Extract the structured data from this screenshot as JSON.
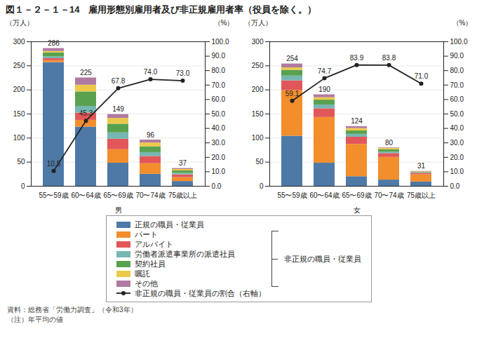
{
  "chart_data": [
    {
      "type": "bar",
      "title": "図１－２－１－14　雇用形態別雇用者及び非正規雇用者率（役員を除く。）",
      "stacked": true,
      "grid": true,
      "data_labels": true,
      "legend": "bottom",
      "x_label": "男",
      "y_label": "（万人）",
      "y2_label": "（%）",
      "categories": [
        "55〜59歳",
        "60〜64歳",
        "65〜69歳",
        "70〜74歳",
        "75歳以上"
      ],
      "ylim": [
        0,
        300
      ],
      "yticks": [
        0,
        50,
        100,
        150,
        200,
        250,
        300
      ],
      "y2lim": [
        0,
        100
      ],
      "y2ticks": [
        {
          "value": 0,
          "label": "0.0"
        },
        {
          "value": 10,
          "label": "10.0"
        },
        {
          "value": 20,
          "label": "20.0"
        },
        {
          "value": 30,
          "label": "30.0"
        },
        {
          "value": 40,
          "label": "40.0"
        },
        {
          "value": 50,
          "label": "50.0"
        },
        {
          "value": 60,
          "label": "60.0"
        },
        {
          "value": 70,
          "label": "70.0"
        },
        {
          "value": 80,
          "label": "80.0"
        },
        {
          "value": 90,
          "label": "90.0"
        },
        {
          "value": 100,
          "label": "100.0"
        }
      ],
      "totals": [
        286,
        225,
        149,
        96,
        37
      ],
      "series": [
        {
          "name": "正規の職員・従業員",
          "values": [
            257,
            123,
            48,
            25,
            10
          ]
        },
        {
          "name": "パート",
          "values": [
            4,
            14,
            28,
            22,
            8
          ]
        },
        {
          "name": "アルバイト",
          "values": [
            4,
            15,
            22,
            15,
            6
          ]
        },
        {
          "name": "労働者派遣事業所の派遣社員",
          "values": [
            4,
            14,
            13,
            8,
            3
          ]
        },
        {
          "name": "契約社員",
          "values": [
            8,
            30,
            18,
            12,
            5
          ]
        },
        {
          "name": "嘱託",
          "values": [
            3,
            14,
            12,
            8,
            3
          ]
        },
        {
          "name": "その他",
          "values": [
            6,
            15,
            8,
            6,
            2
          ]
        },
        {
          "name": "非正規の職員・従業員の割合（右軸）",
          "type": "line",
          "axis": "y2",
          "marker": "circle",
          "values": [
            10.5,
            45.3,
            67.8,
            74.0,
            73.0
          ],
          "value_labels": [
            "10.5",
            "45.3",
            "67.8",
            "74.0",
            "73.0"
          ]
        }
      ],
      "legend_group": {
        "label": "非正規の職員・従業員",
        "series": [
          "パート",
          "アルバイト",
          "労働者派遣事業所の派遣社員",
          "契約社員",
          "嘱託",
          "その他"
        ]
      },
      "source": "資料：総務省「労働力調査」（令和3年）\n（注）年平均の値"
    },
    {
      "type": "bar",
      "stacked": true,
      "grid": true,
      "data_labels": true,
      "x_label": "女",
      "y_label": "（万人）",
      "y2_label": "（%）",
      "categories": [
        "55〜59歳",
        "60〜64歳",
        "65〜69歳",
        "70〜74歳",
        "75歳以上"
      ],
      "ylim": [
        0,
        300
      ],
      "yticks": [
        0,
        50,
        100,
        150,
        200,
        250,
        300
      ],
      "y2lim": [
        0,
        100
      ],
      "y2ticks": [
        {
          "value": 0,
          "label": "0.0"
        },
        {
          "value": 10,
          "label": "10.0"
        },
        {
          "value": 20,
          "label": "20.0"
        },
        {
          "value": 30,
          "label": "30.0"
        },
        {
          "value": 40,
          "label": "40.0"
        },
        {
          "value": 50,
          "label": "50.0"
        },
        {
          "value": 60,
          "label": "60.0"
        },
        {
          "value": 70,
          "label": "70.0"
        },
        {
          "value": 80,
          "label": "80.0"
        },
        {
          "value": 90,
          "label": "90.0"
        },
        {
          "value": 100,
          "label": "100.0"
        }
      ],
      "totals": [
        254,
        190,
        124,
        80,
        31
      ],
      "series": [
        {
          "name": "正規の職員・従業員",
          "values": [
            104,
            48,
            20,
            13,
            9
          ]
        },
        {
          "name": "パート",
          "values": [
            95,
            95,
            67,
            47,
            15
          ]
        },
        {
          "name": "アルバイト",
          "values": [
            20,
            18,
            15,
            8,
            3
          ]
        },
        {
          "name": "労働者派遣事業所の派遣社員",
          "values": [
            10,
            8,
            6,
            3,
            1
          ]
        },
        {
          "name": "契約社員",
          "values": [
            12,
            10,
            7,
            5,
            1
          ]
        },
        {
          "name": "嘱託",
          "values": [
            5,
            5,
            5,
            3,
            1
          ]
        },
        {
          "name": "その他",
          "values": [
            8,
            6,
            4,
            1,
            1
          ]
        },
        {
          "name": "非正規の職員・従業員の割合（右軸）",
          "type": "line",
          "axis": "y2",
          "marker": "circle",
          "values": [
            59.1,
            74.7,
            83.9,
            83.8,
            71.0
          ],
          "value_labels": [
            "59.1",
            "74.7",
            "83.9",
            "83.8",
            "71.0"
          ]
        }
      ]
    }
  ]
}
